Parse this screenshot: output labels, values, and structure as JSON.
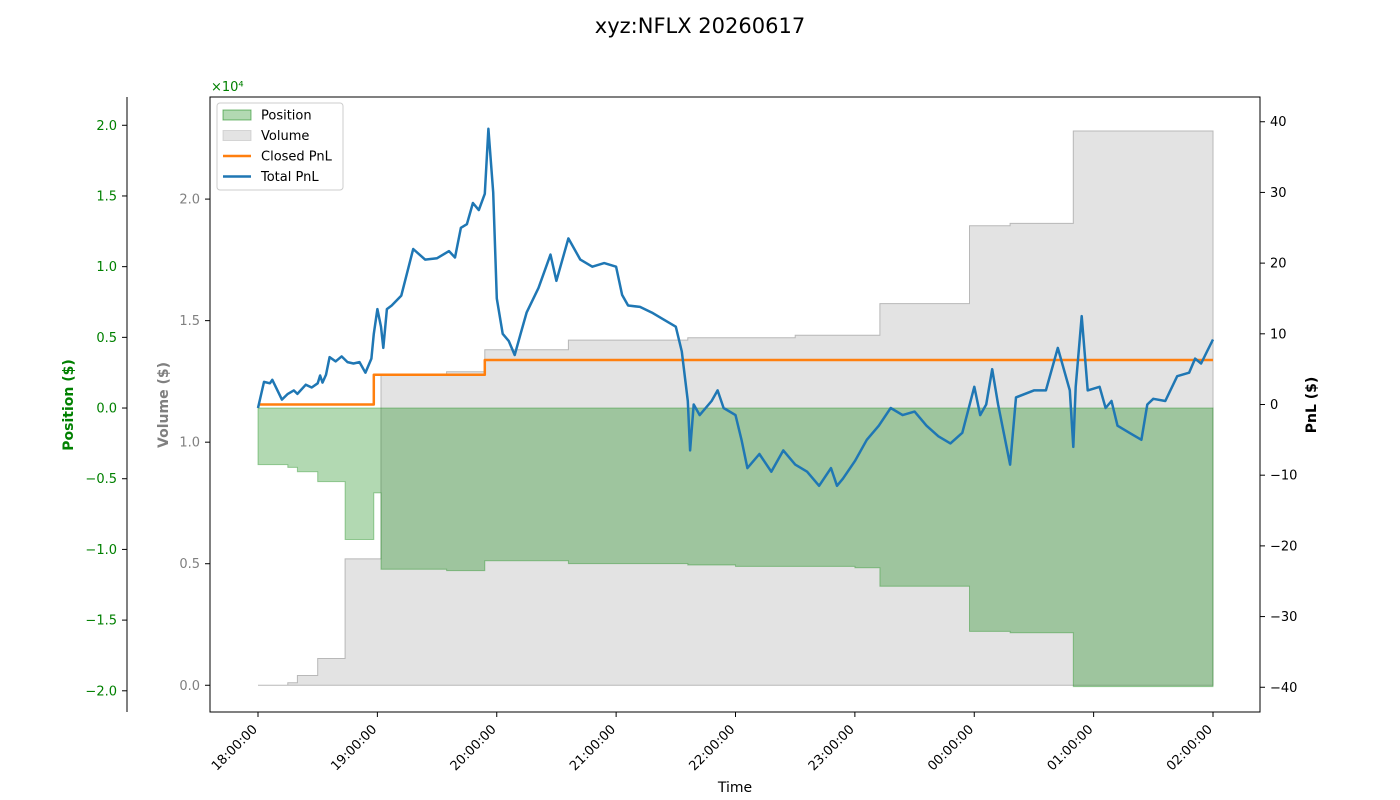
{
  "chart_data": {
    "type": "line",
    "title": "xyz:NFLX 20260617",
    "xlabel": "Time",
    "x_ticks": [
      "18:00:00",
      "19:00:00",
      "20:00:00",
      "21:00:00",
      "22:00:00",
      "23:00:00",
      "00:00:00",
      "01:00:00",
      "02:00:00"
    ],
    "position_axis": {
      "label": "Position ($)",
      "color": "#008000",
      "scale_label": "×10⁴",
      "ylim": [
        -2.15,
        2.2
      ],
      "ticks": [
        -2.0,
        -1.5,
        -1.0,
        -0.5,
        0.0,
        0.5,
        1.0,
        1.5,
        2.0
      ],
      "tick_labels": [
        "−2.0",
        "−1.5",
        "−1.0",
        "−0.5",
        "0.0",
        "0.5",
        "1.0",
        "1.5",
        "2.0"
      ]
    },
    "volume_axis": {
      "label": "Volume ($)",
      "color": "#808080",
      "scale_label": "×10⁴",
      "ylim": [
        -0.11,
        2.42
      ],
      "ticks": [
        0.0,
        0.5,
        1.0,
        1.5,
        2.0
      ],
      "tick_labels": [
        "0.0",
        "0.5",
        "1.0",
        "1.5",
        "2.0"
      ]
    },
    "pnl_axis": {
      "label": "PnL ($)",
      "color": "#000000",
      "ylim": [
        -43.5,
        43.5
      ],
      "ticks": [
        -40,
        -30,
        -20,
        -10,
        0,
        10,
        20,
        30,
        40
      ],
      "tick_labels": [
        "−40",
        "−30",
        "−20",
        "−10",
        "0",
        "10",
        "20",
        "30",
        "40"
      ]
    },
    "legend": {
      "placement": "upper-left",
      "entries": [
        {
          "label": "Position",
          "color": "#008000",
          "kind": "area"
        },
        {
          "label": "Volume",
          "color": "#b0b0b0",
          "kind": "area"
        },
        {
          "label": "Closed PnL",
          "color": "#ff7f0e",
          "kind": "line"
        },
        {
          "label": "Total PnL",
          "color": "#1f77b4",
          "kind": "line"
        }
      ]
    },
    "series": [
      {
        "name": "Position",
        "axis": "position",
        "color": "#008000",
        "points": [
          [
            0,
            -0.4
          ],
          [
            0.25,
            -0.4
          ],
          [
            0.25,
            -0.42
          ],
          [
            0.33,
            -0.42
          ],
          [
            0.33,
            -0.45
          ],
          [
            0.5,
            -0.45
          ],
          [
            0.5,
            -0.52
          ],
          [
            0.73,
            -0.52
          ],
          [
            0.73,
            -0.93
          ],
          [
            0.97,
            -0.93
          ],
          [
            0.97,
            -0.6
          ],
          [
            1.03,
            -0.6
          ],
          [
            1.03,
            -1.14
          ],
          [
            1.58,
            -1.14
          ],
          [
            1.58,
            -1.15
          ],
          [
            1.9,
            -1.15
          ],
          [
            1.9,
            -1.08
          ],
          [
            2.6,
            -1.08
          ],
          [
            2.6,
            -1.1
          ],
          [
            3.6,
            -1.1
          ],
          [
            3.6,
            -1.11
          ],
          [
            4.0,
            -1.11
          ],
          [
            4.0,
            -1.12
          ],
          [
            5.0,
            -1.12
          ],
          [
            5.0,
            -1.13
          ],
          [
            5.21,
            -1.13
          ],
          [
            5.21,
            -1.26
          ],
          [
            5.96,
            -1.26
          ],
          [
            5.96,
            -1.58
          ],
          [
            6.3,
            -1.58
          ],
          [
            6.3,
            -1.59
          ],
          [
            6.83,
            -1.59
          ],
          [
            6.83,
            -1.97
          ],
          [
            8.0,
            -1.97
          ]
        ]
      },
      {
        "name": "Volume",
        "axis": "volume",
        "color": "#b0b0b0",
        "points": [
          [
            0,
            0
          ],
          [
            0.25,
            0
          ],
          [
            0.25,
            0.01
          ],
          [
            0.33,
            0.01
          ],
          [
            0.33,
            0.04
          ],
          [
            0.5,
            0.04
          ],
          [
            0.5,
            0.11
          ],
          [
            0.73,
            0.11
          ],
          [
            0.73,
            0.52
          ],
          [
            1.03,
            0.52
          ],
          [
            1.03,
            1.28
          ],
          [
            1.58,
            1.28
          ],
          [
            1.58,
            1.29
          ],
          [
            1.9,
            1.29
          ],
          [
            1.9,
            1.38
          ],
          [
            2.6,
            1.38
          ],
          [
            2.6,
            1.42
          ],
          [
            3.6,
            1.42
          ],
          [
            3.6,
            1.43
          ],
          [
            4.5,
            1.43
          ],
          [
            4.5,
            1.44
          ],
          [
            5.21,
            1.44
          ],
          [
            5.21,
            1.57
          ],
          [
            5.96,
            1.57
          ],
          [
            5.96,
            1.89
          ],
          [
            6.3,
            1.89
          ],
          [
            6.3,
            1.9
          ],
          [
            6.83,
            1.9
          ],
          [
            6.83,
            2.28
          ],
          [
            8.0,
            2.28
          ]
        ]
      },
      {
        "name": "Closed PnL",
        "axis": "pnl",
        "color": "#ff7f0e",
        "points": [
          [
            0,
            0
          ],
          [
            0.97,
            0
          ],
          [
            0.97,
            4.2
          ],
          [
            1.9,
            4.2
          ],
          [
            1.9,
            6.3
          ],
          [
            8.0,
            6.3
          ]
        ]
      },
      {
        "name": "Total PnL",
        "axis": "pnl",
        "color": "#1f77b4",
        "points": [
          [
            0,
            -0.5
          ],
          [
            0.05,
            3.2
          ],
          [
            0.1,
            3.0
          ],
          [
            0.12,
            3.5
          ],
          [
            0.2,
            0.7
          ],
          [
            0.25,
            1.5
          ],
          [
            0.3,
            2.0
          ],
          [
            0.33,
            1.5
          ],
          [
            0.4,
            2.8
          ],
          [
            0.45,
            2.4
          ],
          [
            0.5,
            3.0
          ],
          [
            0.52,
            4.1
          ],
          [
            0.54,
            3.1
          ],
          [
            0.57,
            4.2
          ],
          [
            0.6,
            6.7
          ],
          [
            0.65,
            6.1
          ],
          [
            0.7,
            6.8
          ],
          [
            0.75,
            6.0
          ],
          [
            0.8,
            5.8
          ],
          [
            0.85,
            6.0
          ],
          [
            0.9,
            4.5
          ],
          [
            0.95,
            6.5
          ],
          [
            0.97,
            10.0
          ],
          [
            1.0,
            13.5
          ],
          [
            1.03,
            11.0
          ],
          [
            1.05,
            8.0
          ],
          [
            1.08,
            13.5
          ],
          [
            1.12,
            14.0
          ],
          [
            1.2,
            15.4
          ],
          [
            1.3,
            22.0
          ],
          [
            1.4,
            20.5
          ],
          [
            1.5,
            20.7
          ],
          [
            1.6,
            21.7
          ],
          [
            1.65,
            20.8
          ],
          [
            1.7,
            25.0
          ],
          [
            1.75,
            25.5
          ],
          [
            1.8,
            28.5
          ],
          [
            1.85,
            27.5
          ],
          [
            1.9,
            29.8
          ],
          [
            1.93,
            39.0
          ],
          [
            1.97,
            30.0
          ],
          [
            2.0,
            15.0
          ],
          [
            2.05,
            10.0
          ],
          [
            2.1,
            9.0
          ],
          [
            2.15,
            7.0
          ],
          [
            2.2,
            10.0
          ],
          [
            2.25,
            13.0
          ],
          [
            2.35,
            16.5
          ],
          [
            2.45,
            21.2
          ],
          [
            2.5,
            17.5
          ],
          [
            2.6,
            23.5
          ],
          [
            2.7,
            20.5
          ],
          [
            2.8,
            19.5
          ],
          [
            2.9,
            20.0
          ],
          [
            3.0,
            19.5
          ],
          [
            3.05,
            15.5
          ],
          [
            3.1,
            14.0
          ],
          [
            3.2,
            13.8
          ],
          [
            3.3,
            13.0
          ],
          [
            3.4,
            12.0
          ],
          [
            3.5,
            11.0
          ],
          [
            3.55,
            7.5
          ],
          [
            3.6,
            0.5
          ],
          [
            3.62,
            -6.5
          ],
          [
            3.65,
            0.0
          ],
          [
            3.7,
            -1.5
          ],
          [
            3.8,
            0.5
          ],
          [
            3.85,
            2.0
          ],
          [
            3.9,
            -0.5
          ],
          [
            4.0,
            -1.5
          ],
          [
            4.05,
            -5.0
          ],
          [
            4.1,
            -9.0
          ],
          [
            4.2,
            -7.0
          ],
          [
            4.3,
            -9.5
          ],
          [
            4.4,
            -6.5
          ],
          [
            4.5,
            -8.5
          ],
          [
            4.6,
            -9.5
          ],
          [
            4.7,
            -11.5
          ],
          [
            4.8,
            -9.0
          ],
          [
            4.85,
            -11.5
          ],
          [
            4.9,
            -10.5
          ],
          [
            5.0,
            -8.0
          ],
          [
            5.1,
            -5.0
          ],
          [
            5.2,
            -3.0
          ],
          [
            5.3,
            -0.5
          ],
          [
            5.4,
            -1.5
          ],
          [
            5.5,
            -1.0
          ],
          [
            5.6,
            -3.0
          ],
          [
            5.7,
            -4.5
          ],
          [
            5.8,
            -5.5
          ],
          [
            5.9,
            -4.0
          ],
          [
            6.0,
            2.5
          ],
          [
            6.05,
            -1.5
          ],
          [
            6.1,
            0.0
          ],
          [
            6.15,
            5.0
          ],
          [
            6.2,
            0.0
          ],
          [
            6.3,
            -8.5
          ],
          [
            6.35,
            1.0
          ],
          [
            6.5,
            2.0
          ],
          [
            6.6,
            2.0
          ],
          [
            6.7,
            8.0
          ],
          [
            6.8,
            2.0
          ],
          [
            6.83,
            -6.0
          ],
          [
            6.85,
            2.5
          ],
          [
            6.9,
            12.5
          ],
          [
            6.95,
            2.0
          ],
          [
            7.05,
            2.5
          ],
          [
            7.1,
            -0.5
          ],
          [
            7.15,
            0.5
          ],
          [
            7.2,
            -3.0
          ],
          [
            7.3,
            -4.0
          ],
          [
            7.4,
            -5.0
          ],
          [
            7.45,
            0.0
          ],
          [
            7.5,
            0.8
          ],
          [
            7.6,
            0.5
          ],
          [
            7.7,
            4.0
          ],
          [
            7.8,
            4.5
          ],
          [
            7.85,
            6.5
          ],
          [
            7.9,
            5.8
          ],
          [
            7.95,
            7.5
          ],
          [
            8.0,
            9.2
          ]
        ]
      }
    ]
  }
}
